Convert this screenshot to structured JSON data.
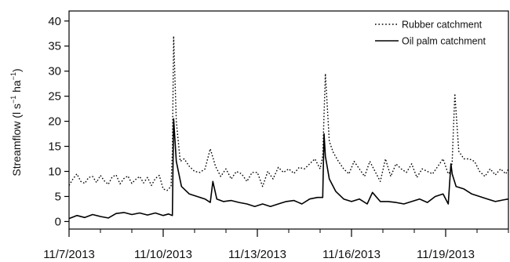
{
  "chart_data": {
    "type": "line",
    "xlabel": "",
    "ylabel": "Streamflow (l s⁻¹ ha⁻¹)",
    "ylabel_main": "Streamflow (l s",
    "ylabel_exp1": "−1",
    "ylabel_mid": " ha",
    "ylabel_exp2": "−1",
    "ylabel_end": ")",
    "ylim": [
      -1.5,
      42
    ],
    "yticks": [
      0,
      5,
      10,
      15,
      20,
      25,
      30,
      35,
      40
    ],
    "xlim": [
      "2013-11-07",
      "2013-11-21"
    ],
    "xticks": [
      {
        "date": "2013-11-07",
        "label": "11/7/2013"
      },
      {
        "date": "2013-11-10",
        "label": "11/10/2013"
      },
      {
        "date": "2013-11-13",
        "label": "11/13/2013"
      },
      {
        "date": "2013-11-16",
        "label": "11/16/2013"
      },
      {
        "date": "2013-11-19",
        "label": "11/19/2013"
      }
    ],
    "minor_xticks_per_interval": 3,
    "grid": false,
    "legend_position": "top-right",
    "series": [
      {
        "name": "Rubber catchment",
        "style": "dotted",
        "color": "#000000",
        "x": [
          "2013-11-07 00:00",
          "2013-11-07 03:00",
          "2013-11-07 06:00",
          "2013-11-07 09:00",
          "2013-11-07 12:00",
          "2013-11-07 15:00",
          "2013-11-07 18:00",
          "2013-11-07 21:00",
          "2013-11-08 00:00",
          "2013-11-08 03:00",
          "2013-11-08 06:00",
          "2013-11-08 09:00",
          "2013-11-08 12:00",
          "2013-11-08 15:00",
          "2013-11-08 18:00",
          "2013-11-08 21:00",
          "2013-11-09 00:00",
          "2013-11-09 03:00",
          "2013-11-09 06:00",
          "2013-11-09 09:00",
          "2013-11-09 12:00",
          "2013-11-09 15:00",
          "2013-11-09 18:00",
          "2013-11-09 21:00",
          "2013-11-10 00:00",
          "2013-11-10 03:00",
          "2013-11-10 06:00",
          "2013-11-10 07:00",
          "2013-11-10 08:00",
          "2013-11-10 10:00",
          "2013-11-10 13:00",
          "2013-11-10 16:00",
          "2013-11-10 20:00",
          "2013-11-11 00:00",
          "2013-11-11 04:00",
          "2013-11-11 08:00",
          "2013-11-11 12:00",
          "2013-11-11 16:00",
          "2013-11-11 20:00",
          "2013-11-12 00:00",
          "2013-11-12 04:00",
          "2013-11-12 08:00",
          "2013-11-12 12:00",
          "2013-11-12 16:00",
          "2013-11-12 20:00",
          "2013-11-13 00:00",
          "2013-11-13 04:00",
          "2013-11-13 08:00",
          "2013-11-13 12:00",
          "2013-11-13 16:00",
          "2013-11-13 20:00",
          "2013-11-14 00:00",
          "2013-11-14 04:00",
          "2013-11-14 08:00",
          "2013-11-14 12:00",
          "2013-11-14 16:00",
          "2013-11-14 20:00",
          "2013-11-15 00:00",
          "2013-11-15 02:00",
          "2013-11-15 04:00",
          "2013-11-15 07:00",
          "2013-11-15 10:00",
          "2013-11-15 14:00",
          "2013-11-15 18:00",
          "2013-11-15 22:00",
          "2013-11-16 02:00",
          "2013-11-16 06:00",
          "2013-11-16 10:00",
          "2013-11-16 14:00",
          "2013-11-16 18:00",
          "2013-11-16 22:00",
          "2013-11-17 02:00",
          "2013-11-17 06:00",
          "2013-11-17 10:00",
          "2013-11-17 14:00",
          "2013-11-17 18:00",
          "2013-11-17 22:00",
          "2013-11-18 02:00",
          "2013-11-18 06:00",
          "2013-11-18 10:00",
          "2013-11-18 14:00",
          "2013-11-18 18:00",
          "2013-11-18 22:00",
          "2013-11-19 02:00",
          "2013-11-19 04:00",
          "2013-11-19 05:00",
          "2013-11-19 07:00",
          "2013-11-19 10:00",
          "2013-11-19 14:00",
          "2013-11-19 18:00",
          "2013-11-19 22:00",
          "2013-11-20 02:00",
          "2013-11-20 06:00",
          "2013-11-20 10:00",
          "2013-11-20 14:00",
          "2013-11-20 18:00",
          "2013-11-20 22:00",
          "2013-11-21 00:00"
        ],
        "y": [
          7.2,
          8.5,
          9.5,
          8.0,
          7.6,
          8.8,
          9.0,
          7.8,
          9.2,
          8.1,
          7.4,
          8.9,
          9.3,
          7.5,
          8.6,
          9.1,
          7.6,
          8.4,
          9.0,
          7.7,
          8.8,
          7.2,
          8.6,
          9.2,
          6.5,
          6.2,
          7.0,
          14.0,
          37.0,
          20.0,
          12.0,
          12.5,
          11.0,
          10.0,
          9.8,
          10.5,
          14.5,
          11.0,
          9.0,
          10.5,
          8.5,
          10.0,
          9.5,
          8.0,
          9.8,
          9.8,
          7.0,
          10.0,
          8.5,
          10.8,
          9.8,
          10.5,
          9.6,
          10.8,
          10.5,
          11.5,
          12.5,
          10.5,
          13.0,
          29.5,
          16.0,
          13.8,
          12.0,
          10.5,
          9.5,
          12.0,
          10.5,
          9.0,
          12.0,
          10.0,
          8.0,
          12.5,
          9.0,
          11.5,
          10.5,
          9.8,
          11.5,
          8.8,
          10.5,
          10.0,
          9.5,
          11.0,
          12.5,
          9.5,
          10.0,
          12.0,
          25.5,
          14.0,
          12.5,
          12.5,
          12.0,
          10.0,
          9.0,
          10.5,
          9.3,
          10.5,
          9.5,
          10.5
        ]
      },
      {
        "name": "Oil palm catchment",
        "style": "solid",
        "color": "#000000",
        "x": [
          "2013-11-07 00:00",
          "2013-11-07 06:00",
          "2013-11-07 12:00",
          "2013-11-07 18:00",
          "2013-11-08 00:00",
          "2013-11-08 06:00",
          "2013-11-08 12:00",
          "2013-11-08 18:00",
          "2013-11-09 00:00",
          "2013-11-09 06:00",
          "2013-11-09 12:00",
          "2013-11-09 18:00",
          "2013-11-10 00:00",
          "2013-11-10 04:00",
          "2013-11-10 07:00",
          "2013-11-10 08:00",
          "2013-11-10 10:00",
          "2013-11-10 14:00",
          "2013-11-10 20:00",
          "2013-11-11 02:00",
          "2013-11-11 08:00",
          "2013-11-11 12:00",
          "2013-11-11 14:00",
          "2013-11-11 17:00",
          "2013-11-11 22:00",
          "2013-11-12 04:00",
          "2013-11-12 10:00",
          "2013-11-12 16:00",
          "2013-11-12 22:00",
          "2013-11-13 04:00",
          "2013-11-13 10:00",
          "2013-11-13 16:00",
          "2013-11-13 22:00",
          "2013-11-14 04:00",
          "2013-11-14 10:00",
          "2013-11-14 16:00",
          "2013-11-14 22:00",
          "2013-11-15 02:00",
          "2013-11-15 03:00",
          "2013-11-15 04:00",
          "2013-11-15 07:00",
          "2013-11-15 12:00",
          "2013-11-15 18:00",
          "2013-11-16 00:00",
          "2013-11-16 06:00",
          "2013-11-16 12:00",
          "2013-11-16 16:00",
          "2013-11-16 22:00",
          "2013-11-17 04:00",
          "2013-11-17 10:00",
          "2013-11-17 16:00",
          "2013-11-17 22:00",
          "2013-11-18 04:00",
          "2013-11-18 10:00",
          "2013-11-18 16:00",
          "2013-11-18 22:00",
          "2013-11-19 02:00",
          "2013-11-19 04:00",
          "2013-11-19 05:00",
          "2013-11-19 08:00",
          "2013-11-19 14:00",
          "2013-11-19 20:00",
          "2013-11-20 02:00",
          "2013-11-20 08:00",
          "2013-11-20 14:00",
          "2013-11-20 20:00",
          "2013-11-21 00:00"
        ],
        "y": [
          0.6,
          1.2,
          0.8,
          1.4,
          1.0,
          0.7,
          1.6,
          1.8,
          1.4,
          1.7,
          1.3,
          1.7,
          1.2,
          1.5,
          1.2,
          20.5,
          12.0,
          7.0,
          5.5,
          5.0,
          4.5,
          3.8,
          8.0,
          4.5,
          4.0,
          4.2,
          3.8,
          3.5,
          3.0,
          3.5,
          3.0,
          3.5,
          4.0,
          4.2,
          3.5,
          4.5,
          4.8,
          4.8,
          17.5,
          13.0,
          8.5,
          6.0,
          4.5,
          4.0,
          4.5,
          3.5,
          5.8,
          4.0,
          4.0,
          3.8,
          3.5,
          4.0,
          4.5,
          3.8,
          5.0,
          5.5,
          3.5,
          11.5,
          9.5,
          7.0,
          6.5,
          5.5,
          5.0,
          4.5,
          4.0,
          4.3,
          4.5
        ]
      }
    ]
  }
}
